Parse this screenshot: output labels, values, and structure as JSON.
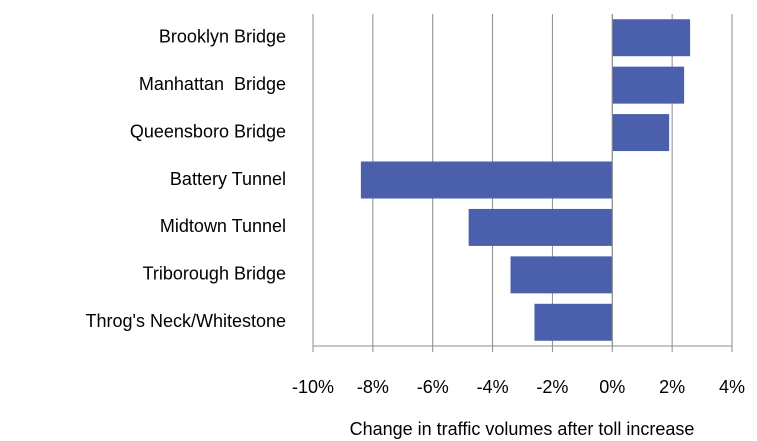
{
  "chart_data": {
    "type": "bar",
    "orientation": "horizontal",
    "x_label": "Change in traffic volumes after toll increase",
    "categories": [
      "Brooklyn Bridge",
      "Manhattan  Bridge",
      "Queensboro Bridge",
      "Battery Tunnel",
      "Midtown Tunnel",
      "Triborough Bridge",
      "Throg's Neck/Whitestone"
    ],
    "values": [
      2.6,
      2.4,
      1.9,
      -8.4,
      -4.8,
      -3.4,
      -2.6
    ],
    "color": "#4a60ad",
    "xlim": [
      -10,
      4
    ],
    "xticks": [
      {
        "value": -10,
        "label": "-10%"
      },
      {
        "value": -8,
        "label": "-8%"
      },
      {
        "value": -6,
        "label": "-6%"
      },
      {
        "value": -4,
        "label": "-4%"
      },
      {
        "value": -2,
        "label": "-2%"
      },
      {
        "value": 0,
        "label": "0%"
      },
      {
        "value": 2,
        "label": "2%"
      },
      {
        "value": 4,
        "label": "4%"
      }
    ],
    "grid": true
  }
}
